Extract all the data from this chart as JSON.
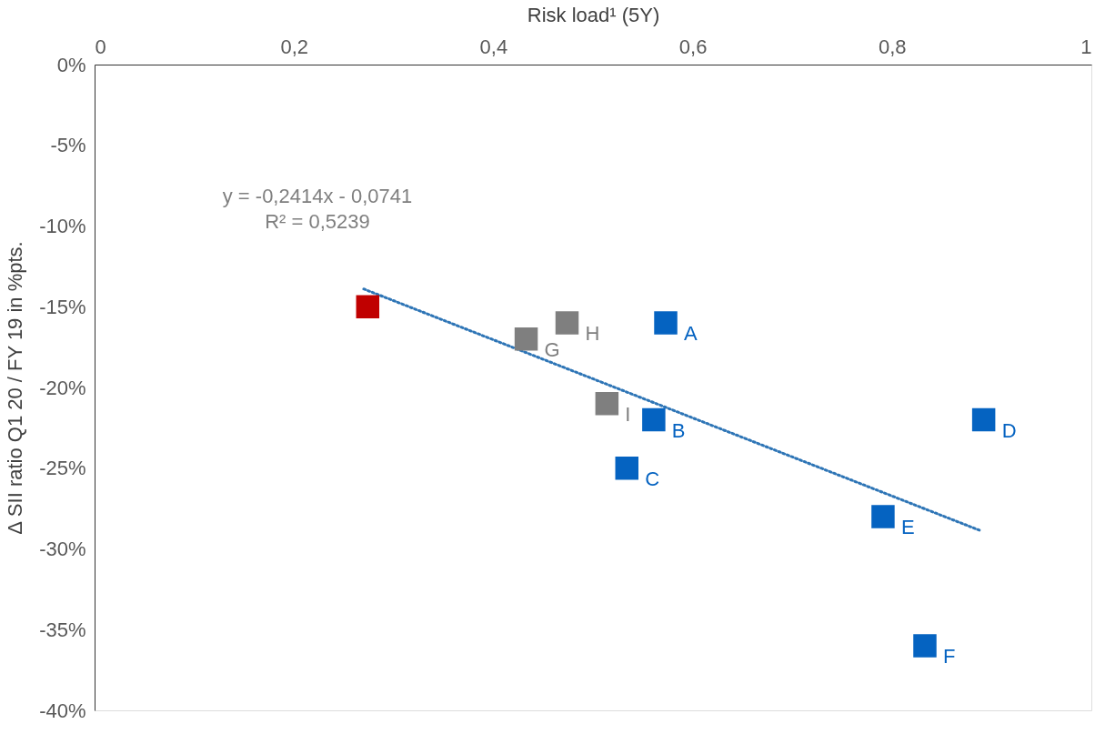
{
  "chart_data": {
    "type": "scatter",
    "xlabel": "Risk load¹ (5Y)",
    "ylabel": "Δ SII ratio Q1 20 / FY 19 in %pts.",
    "xlim": [
      0,
      1
    ],
    "xticks": [
      0,
      {
        "value": 0.2,
        "label": "0,2"
      },
      {
        "value": 0.4,
        "label": "0,4"
      },
      {
        "value": 0.6,
        "label": "0,6"
      },
      {
        "value": 0.8,
        "label": "0,8"
      },
      1
    ],
    "ylim": [
      -40,
      0
    ],
    "yticks": [
      {
        "value": 0,
        "label": "0%"
      },
      {
        "value": -5,
        "label": "-5%"
      },
      {
        "value": -10,
        "label": "-10%"
      },
      {
        "value": -15,
        "label": "-15%"
      },
      {
        "value": -20,
        "label": "-20%"
      },
      {
        "value": -25,
        "label": "-25%"
      },
      {
        "value": -30,
        "label": "-30%"
      },
      {
        "value": -35,
        "label": "-35%"
      },
      {
        "value": -40,
        "label": "-40%"
      }
    ],
    "grid": false,
    "marker": "square",
    "annotations": [
      "y = -0,2414x - 0,0741",
      "R² = 0,5239"
    ],
    "series": [
      {
        "type": "line",
        "color": "#2e75b6",
        "line_style": "dotted",
        "marker": "none",
        "x": [
          0.27,
          0.89
        ],
        "values": [
          -13.9,
          -28.9
        ]
      },
      {
        "color": "#c00000",
        "x": [
          0.274
        ],
        "values": [
          -15
        ]
      },
      {
        "color": "#7f7f7f",
        "x": [
          0.474,
          0.433,
          0.514
        ],
        "values": [
          -16,
          -17,
          -21
        ],
        "value_labels": [
          "H",
          "G",
          "I"
        ]
      },
      {
        "color": "#0563c1",
        "x": [
          0.573,
          0.561,
          0.534,
          0.892,
          0.791,
          0.833
        ],
        "values": [
          -16,
          -22,
          -25,
          -22,
          -28,
          -36
        ],
        "value_labels": [
          "A",
          "B",
          "C",
          "D",
          "E",
          "F"
        ]
      }
    ]
  }
}
